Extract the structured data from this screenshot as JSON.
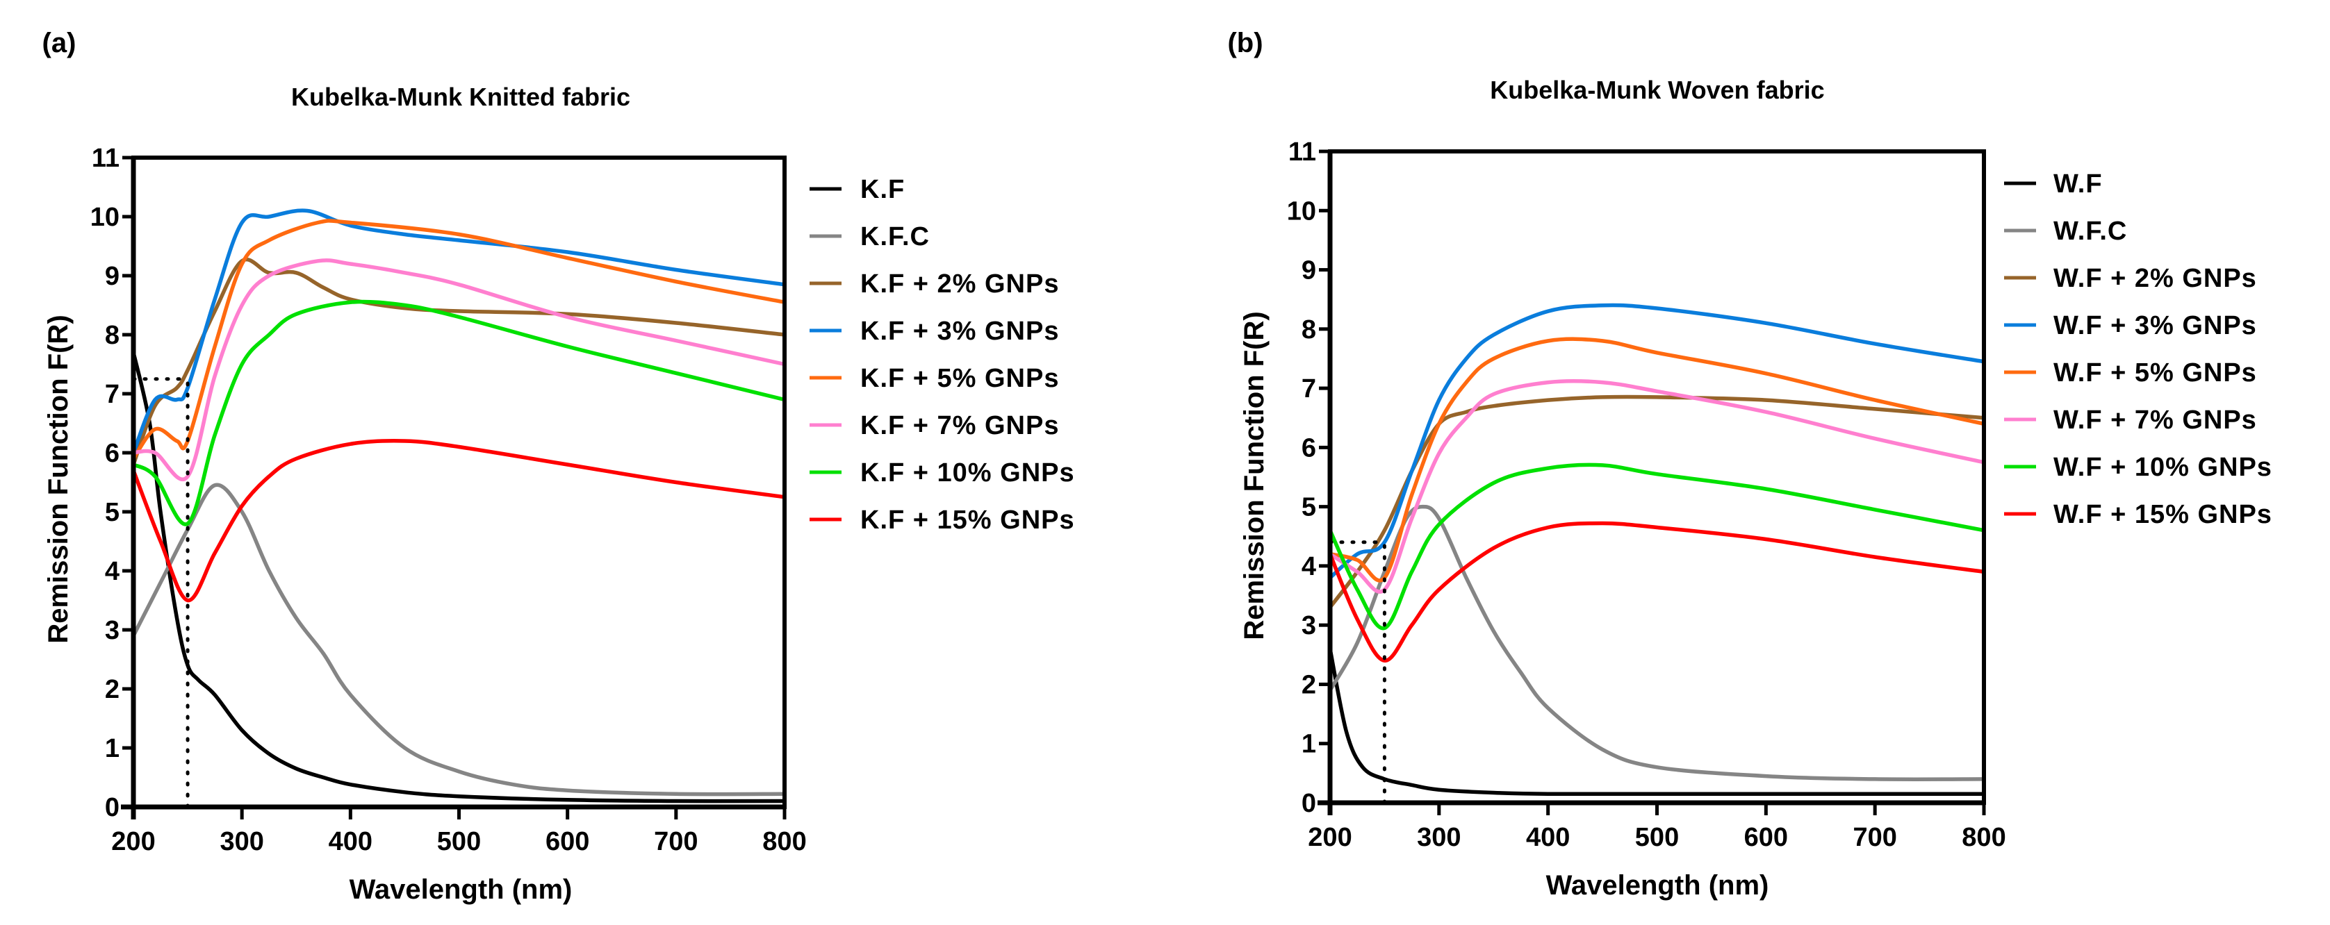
{
  "chart_data": [
    {
      "type": "line",
      "panel_label": "(a)",
      "title": "Kubelka-Munk Knitted fabric",
      "xlabel": "Wavelength (nm)",
      "ylabel": "Remission Function F(R)",
      "xlim": [
        200,
        800
      ],
      "ylim": [
        0,
        11
      ],
      "xticks": [
        200,
        300,
        400,
        500,
        600,
        700,
        800
      ],
      "yticks": [
        0,
        1,
        2,
        3,
        4,
        5,
        6,
        7,
        8,
        9,
        10,
        11
      ],
      "legend_position": "right",
      "reference_lines": {
        "x": 250,
        "y": 7.25
      },
      "series": [
        {
          "name": "K.F",
          "color": "#000000",
          "x": [
            200,
            215,
            225,
            240,
            250,
            260,
            275,
            300,
            325,
            350,
            375,
            400,
            450,
            500,
            600,
            700,
            800
          ],
          "y": [
            7.7,
            6.5,
            5.0,
            3.2,
            2.4,
            2.15,
            1.9,
            1.3,
            0.9,
            0.65,
            0.5,
            0.38,
            0.25,
            0.18,
            0.12,
            0.1,
            0.1
          ]
        },
        {
          "name": "K.F.C",
          "color": "#858585",
          "x": [
            200,
            225,
            250,
            275,
            300,
            325,
            350,
            375,
            400,
            450,
            500,
            550,
            600,
            700,
            800
          ],
          "y": [
            2.9,
            3.8,
            4.7,
            5.45,
            5.0,
            4.0,
            3.2,
            2.6,
            1.9,
            1.0,
            0.6,
            0.38,
            0.28,
            0.22,
            0.22
          ]
        },
        {
          "name": "K.F + 2% GNPs",
          "color": "#96642a",
          "x": [
            200,
            220,
            240,
            250,
            275,
            300,
            325,
            350,
            375,
            400,
            450,
            500,
            600,
            700,
            800
          ],
          "y": [
            5.8,
            6.8,
            7.1,
            7.4,
            8.4,
            9.25,
            9.05,
            9.05,
            8.8,
            8.6,
            8.45,
            8.4,
            8.35,
            8.2,
            8.0
          ]
        },
        {
          "name": "K.F + 3% GNPs",
          "color": "#0a7ddc",
          "x": [
            200,
            220,
            240,
            250,
            275,
            300,
            325,
            360,
            400,
            450,
            500,
            600,
            700,
            800
          ],
          "y": [
            6.0,
            6.9,
            6.9,
            7.1,
            8.6,
            9.9,
            10.0,
            10.1,
            9.85,
            9.7,
            9.6,
            9.4,
            9.1,
            8.85
          ]
        },
        {
          "name": "K.F + 5% GNPs",
          "color": "#ff6a10",
          "x": [
            200,
            220,
            240,
            250,
            275,
            300,
            325,
            370,
            400,
            500,
            600,
            700,
            800
          ],
          "y": [
            5.9,
            6.4,
            6.2,
            6.2,
            7.8,
            9.2,
            9.6,
            9.9,
            9.9,
            9.7,
            9.3,
            8.9,
            8.55
          ]
        },
        {
          "name": "K.F + 7% GNPs",
          "color": "#ff7fcf",
          "x": [
            200,
            220,
            250,
            275,
            300,
            325,
            370,
            400,
            450,
            500,
            600,
            700,
            800
          ],
          "y": [
            6.0,
            6.0,
            5.6,
            7.3,
            8.5,
            9.0,
            9.25,
            9.2,
            9.05,
            8.85,
            8.3,
            7.9,
            7.5
          ]
        },
        {
          "name": "K.F + 10% GNPs",
          "color": "#00e000",
          "x": [
            200,
            220,
            250,
            275,
            300,
            325,
            350,
            400,
            450,
            500,
            600,
            700,
            800
          ],
          "y": [
            5.8,
            5.6,
            4.8,
            6.3,
            7.5,
            8.0,
            8.35,
            8.55,
            8.5,
            8.3,
            7.8,
            7.35,
            6.9
          ]
        },
        {
          "name": "K.F + 15% GNPs",
          "color": "#ff0000",
          "x": [
            200,
            225,
            250,
            275,
            300,
            325,
            350,
            400,
            450,
            500,
            600,
            700,
            800
          ],
          "y": [
            5.7,
            4.5,
            3.5,
            4.3,
            5.1,
            5.6,
            5.9,
            6.15,
            6.2,
            6.1,
            5.8,
            5.5,
            5.25
          ]
        }
      ]
    },
    {
      "type": "line",
      "panel_label": "(b)",
      "title": "Kubelka-Munk Woven fabric",
      "xlabel": "Wavelength (nm)",
      "ylabel": "Remission Function F(R)",
      "xlim": [
        200,
        800
      ],
      "ylim": [
        0,
        11
      ],
      "xticks": [
        200,
        300,
        400,
        500,
        600,
        700,
        800
      ],
      "yticks": [
        0,
        1,
        2,
        3,
        4,
        5,
        6,
        7,
        8,
        9,
        10,
        11
      ],
      "legend_position": "right",
      "reference_lines": {
        "x": 250,
        "y": 4.4
      },
      "series": [
        {
          "name": "W.F",
          "color": "#000000",
          "x": [
            200,
            215,
            230,
            250,
            275,
            300,
            350,
            400,
            500,
            600,
            700,
            800
          ],
          "y": [
            2.6,
            1.2,
            0.6,
            0.4,
            0.3,
            0.22,
            0.17,
            0.15,
            0.15,
            0.15,
            0.15,
            0.15
          ]
        },
        {
          "name": "W.F.C",
          "color": "#858585",
          "x": [
            200,
            225,
            250,
            270,
            285,
            300,
            325,
            350,
            375,
            400,
            450,
            500,
            600,
            700,
            800
          ],
          "y": [
            1.9,
            2.7,
            3.9,
            4.8,
            5.0,
            4.8,
            3.8,
            2.9,
            2.2,
            1.6,
            0.9,
            0.6,
            0.45,
            0.4,
            0.4
          ]
        },
        {
          "name": "W.F + 2% GNPs",
          "color": "#96642a",
          "x": [
            200,
            225,
            250,
            275,
            300,
            325,
            350,
            400,
            450,
            500,
            600,
            700,
            800
          ],
          "y": [
            3.3,
            3.9,
            4.6,
            5.6,
            6.4,
            6.6,
            6.7,
            6.8,
            6.85,
            6.85,
            6.8,
            6.65,
            6.5
          ]
        },
        {
          "name": "W.F + 3% GNPs",
          "color": "#0a7ddc",
          "x": [
            200,
            225,
            250,
            275,
            300,
            325,
            350,
            400,
            450,
            500,
            600,
            700,
            800
          ],
          "y": [
            3.8,
            4.2,
            4.4,
            5.6,
            6.8,
            7.5,
            7.9,
            8.3,
            8.4,
            8.35,
            8.1,
            7.75,
            7.45
          ]
        },
        {
          "name": "W.F + 5% GNPs",
          "color": "#ff6a10",
          "x": [
            200,
            225,
            250,
            275,
            300,
            325,
            350,
            400,
            450,
            500,
            600,
            700,
            800
          ],
          "y": [
            4.2,
            4.1,
            3.8,
            5.2,
            6.4,
            7.1,
            7.5,
            7.8,
            7.8,
            7.6,
            7.25,
            6.8,
            6.4
          ]
        },
        {
          "name": "W.F + 7% GNPs",
          "color": "#ff7fcf",
          "x": [
            200,
            225,
            250,
            275,
            300,
            325,
            350,
            400,
            450,
            500,
            600,
            700,
            800
          ],
          "y": [
            4.2,
            3.9,
            3.6,
            4.8,
            5.9,
            6.5,
            6.9,
            7.1,
            7.1,
            6.95,
            6.6,
            6.15,
            5.75
          ]
        },
        {
          "name": "W.F + 10% GNPs",
          "color": "#00e000",
          "x": [
            200,
            225,
            250,
            275,
            300,
            350,
            400,
            450,
            500,
            600,
            700,
            800
          ],
          "y": [
            4.6,
            3.6,
            2.95,
            3.9,
            4.7,
            5.4,
            5.65,
            5.7,
            5.55,
            5.3,
            4.95,
            4.6
          ]
        },
        {
          "name": "W.F + 15% GNPs",
          "color": "#ff0000",
          "x": [
            200,
            225,
            250,
            275,
            300,
            350,
            400,
            450,
            500,
            600,
            700,
            800
          ],
          "y": [
            4.2,
            3.1,
            2.4,
            3.0,
            3.6,
            4.3,
            4.65,
            4.72,
            4.65,
            4.45,
            4.15,
            3.9
          ]
        }
      ]
    }
  ]
}
